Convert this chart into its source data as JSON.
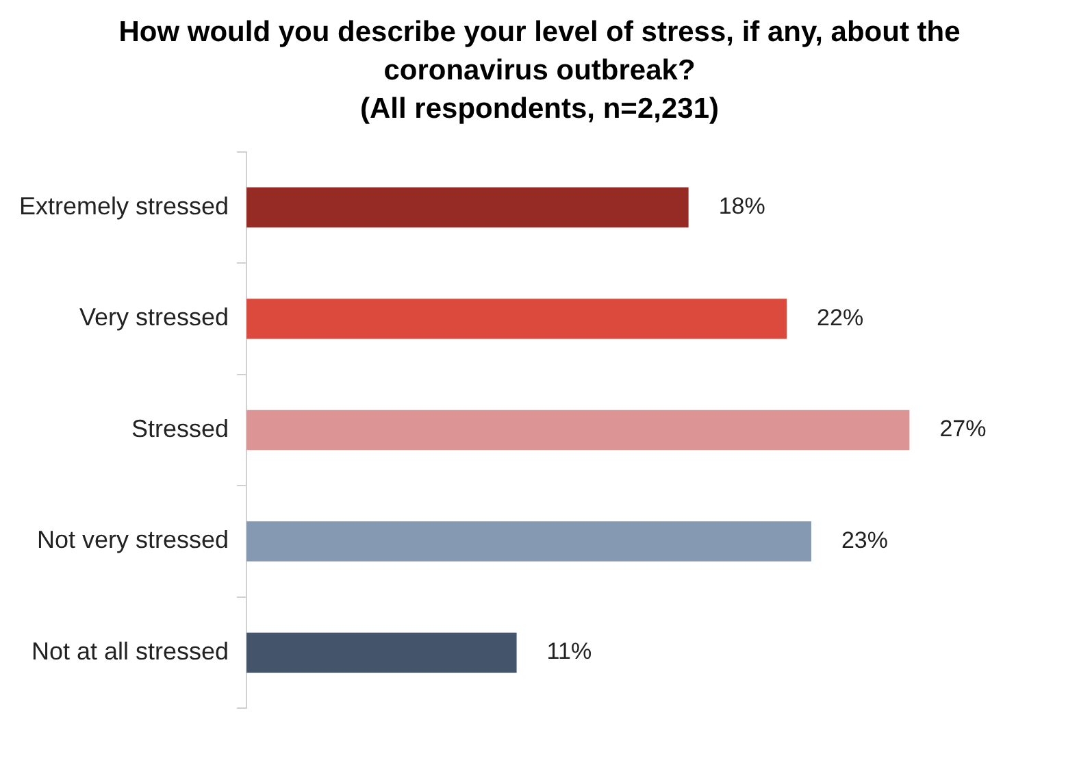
{
  "chart_data": {
    "type": "bar",
    "orientation": "horizontal",
    "title": "How would you describe your level of stress, if any, about the coronavirus outbreak?",
    "subtitle": "(All respondents, n=2,231)",
    "categories": [
      "Extremely stressed",
      "Very stressed",
      "Stressed",
      "Not very stressed",
      "Not at all stressed"
    ],
    "values": [
      18,
      22,
      27,
      23,
      11
    ],
    "colors": [
      "#962a24",
      "#dc4a3d",
      "#dd9494",
      "#8599b3",
      "#44546a"
    ],
    "value_labels": [
      "18%",
      "22%",
      "27%",
      "23%",
      "11%"
    ]
  }
}
